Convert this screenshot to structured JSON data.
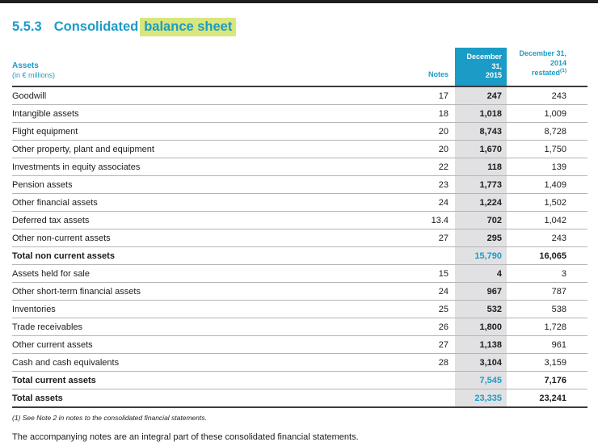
{
  "page": {
    "section_number": "5.5.3",
    "title": "Consolidated",
    "title_highlight": "balance sheet"
  },
  "table": {
    "assets_header": "Assets",
    "assets_subheader": "(in € millions)",
    "notes_header": "Notes",
    "col_2015": {
      "line1": "December 31,",
      "line2": "2015"
    },
    "col_2014": {
      "line1": "December 31,",
      "line2": "2014",
      "line3": "restated",
      "footnote_ref": "(1)"
    },
    "rows": [
      {
        "label": "Goodwill",
        "note": "17",
        "v2015": "247",
        "v2014": "243",
        "total": false
      },
      {
        "label": "Intangible assets",
        "note": "18",
        "v2015": "1,018",
        "v2014": "1,009",
        "total": false
      },
      {
        "label": "Flight equipment",
        "note": "20",
        "v2015": "8,743",
        "v2014": "8,728",
        "total": false
      },
      {
        "label": "Other property, plant and equipment",
        "note": "20",
        "v2015": "1,670",
        "v2014": "1,750",
        "total": false
      },
      {
        "label": "Investments in equity associates",
        "note": "22",
        "v2015": "118",
        "v2014": "139",
        "total": false
      },
      {
        "label": "Pension assets",
        "note": "23",
        "v2015": "1,773",
        "v2014": "1,409",
        "total": false
      },
      {
        "label": "Other financial assets",
        "note": "24",
        "v2015": "1,224",
        "v2014": "1,502",
        "total": false
      },
      {
        "label": "Deferred tax assets",
        "note": "13.4",
        "v2015": "702",
        "v2014": "1,042",
        "total": false
      },
      {
        "label": "Other non-current assets",
        "note": "27",
        "v2015": "295",
        "v2014": "243",
        "total": false
      },
      {
        "label": "Total non current assets",
        "note": "",
        "v2015": "15,790",
        "v2014": "16,065",
        "total": true
      },
      {
        "label": "Assets held for sale",
        "note": "15",
        "v2015": "4",
        "v2014": "3",
        "total": false
      },
      {
        "label": "Other short-term financial assets",
        "note": "24",
        "v2015": "967",
        "v2014": "787",
        "total": false
      },
      {
        "label": "Inventories",
        "note": "25",
        "v2015": "532",
        "v2014": "538",
        "total": false
      },
      {
        "label": "Trade receivables",
        "note": "26",
        "v2015": "1,800",
        "v2014": "1,728",
        "total": false
      },
      {
        "label": "Other current assets",
        "note": "27",
        "v2015": "1,138",
        "v2014": "961",
        "total": false
      },
      {
        "label": "Cash and cash equivalents",
        "note": "28",
        "v2015": "3,104",
        "v2014": "3,159",
        "total": false
      },
      {
        "label": "Total current assets",
        "note": "",
        "v2015": "7,545",
        "v2014": "7,176",
        "total": true
      },
      {
        "label": "Total assets",
        "note": "",
        "v2015": "23,335",
        "v2014": "23,241",
        "total": true,
        "final": true
      }
    ]
  },
  "notes": {
    "footnote": "(1)  See Note 2 in notes to the consolidated financial statements.",
    "closing": "The accompanying notes are an integral part of these consolidated financial statements."
  },
  "colors": {
    "accent_blue": "#1a9cc7",
    "highlight_green": "#d9e67b",
    "column_gray": "#e1e1e3",
    "top_bar": "#1f1f1f"
  }
}
